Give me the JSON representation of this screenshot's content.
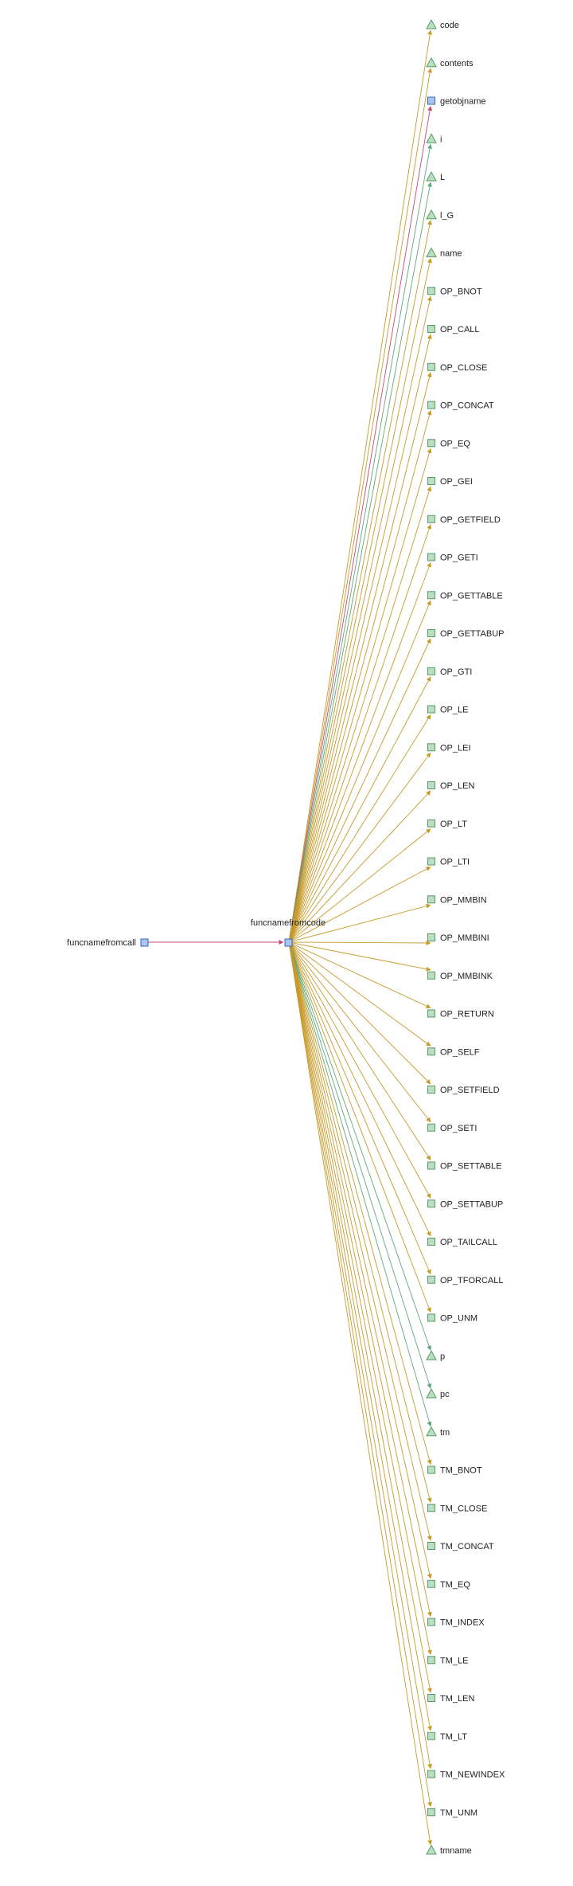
{
  "graph": {
    "source": {
      "label": "funcnamefromcall",
      "shape": "square"
    },
    "center": {
      "label": "funcnamefromcode",
      "shape": "square"
    },
    "source_edge_color": "#c8467a",
    "node_fill": "#b9dfc0",
    "node_stroke": "#5a9a68",
    "square_fill": "#aac4ec",
    "square_stroke": "#3a64b8",
    "targets": [
      {
        "label": "code",
        "shape": "triangle",
        "color": "#c79a2a"
      },
      {
        "label": "contents",
        "shape": "triangle",
        "color": "#c79a2a"
      },
      {
        "label": "getobjname",
        "shape": "square",
        "color": "#c8467a"
      },
      {
        "label": "i",
        "shape": "triangle",
        "color": "#5fa877"
      },
      {
        "label": "L",
        "shape": "triangle",
        "color": "#5fa877"
      },
      {
        "label": "l_G",
        "shape": "triangle",
        "color": "#c79a2a"
      },
      {
        "label": "name",
        "shape": "triangle",
        "color": "#c79a2a"
      },
      {
        "label": "OP_BNOT",
        "shape": "box",
        "color": "#c79a2a"
      },
      {
        "label": "OP_CALL",
        "shape": "box",
        "color": "#c79a2a"
      },
      {
        "label": "OP_CLOSE",
        "shape": "box",
        "color": "#c79a2a"
      },
      {
        "label": "OP_CONCAT",
        "shape": "box",
        "color": "#c79a2a"
      },
      {
        "label": "OP_EQ",
        "shape": "box",
        "color": "#c79a2a"
      },
      {
        "label": "OP_GEI",
        "shape": "box",
        "color": "#c79a2a"
      },
      {
        "label": "OP_GETFIELD",
        "shape": "box",
        "color": "#c79a2a"
      },
      {
        "label": "OP_GETI",
        "shape": "box",
        "color": "#c79a2a"
      },
      {
        "label": "OP_GETTABLE",
        "shape": "box",
        "color": "#c79a2a"
      },
      {
        "label": "OP_GETTABUP",
        "shape": "box",
        "color": "#c79a2a"
      },
      {
        "label": "OP_GTI",
        "shape": "box",
        "color": "#c79a2a"
      },
      {
        "label": "OP_LE",
        "shape": "box",
        "color": "#c79a2a"
      },
      {
        "label": "OP_LEI",
        "shape": "box",
        "color": "#c79a2a"
      },
      {
        "label": "OP_LEN",
        "shape": "box",
        "color": "#c79a2a"
      },
      {
        "label": "OP_LT",
        "shape": "box",
        "color": "#c79a2a"
      },
      {
        "label": "OP_LTI",
        "shape": "box",
        "color": "#c79a2a"
      },
      {
        "label": "OP_MMBIN",
        "shape": "box",
        "color": "#c79a2a"
      },
      {
        "label": "OP_MMBINI",
        "shape": "box",
        "color": "#c79a2a"
      },
      {
        "label": "OP_MMBINK",
        "shape": "box",
        "color": "#c79a2a"
      },
      {
        "label": "OP_RETURN",
        "shape": "box",
        "color": "#c79a2a"
      },
      {
        "label": "OP_SELF",
        "shape": "box",
        "color": "#c79a2a"
      },
      {
        "label": "OP_SETFIELD",
        "shape": "box",
        "color": "#c79a2a"
      },
      {
        "label": "OP_SETI",
        "shape": "box",
        "color": "#c79a2a"
      },
      {
        "label": "OP_SETTABLE",
        "shape": "box",
        "color": "#c79a2a"
      },
      {
        "label": "OP_SETTABUP",
        "shape": "box",
        "color": "#c79a2a"
      },
      {
        "label": "OP_TAILCALL",
        "shape": "box",
        "color": "#c79a2a"
      },
      {
        "label": "OP_TFORCALL",
        "shape": "box",
        "color": "#c79a2a"
      },
      {
        "label": "OP_UNM",
        "shape": "box",
        "color": "#c79a2a"
      },
      {
        "label": "p",
        "shape": "triangle",
        "color": "#5fa877"
      },
      {
        "label": "pc",
        "shape": "triangle",
        "color": "#5fa877"
      },
      {
        "label": "tm",
        "shape": "triangle",
        "color": "#5fa877"
      },
      {
        "label": "TM_BNOT",
        "shape": "box",
        "color": "#c79a2a"
      },
      {
        "label": "TM_CLOSE",
        "shape": "box",
        "color": "#c79a2a"
      },
      {
        "label": "TM_CONCAT",
        "shape": "box",
        "color": "#c79a2a"
      },
      {
        "label": "TM_EQ",
        "shape": "box",
        "color": "#c79a2a"
      },
      {
        "label": "TM_INDEX",
        "shape": "box",
        "color": "#c79a2a"
      },
      {
        "label": "TM_LE",
        "shape": "box",
        "color": "#c79a2a"
      },
      {
        "label": "TM_LEN",
        "shape": "box",
        "color": "#c79a2a"
      },
      {
        "label": "TM_LT",
        "shape": "box",
        "color": "#c79a2a"
      },
      {
        "label": "TM_NEWINDEX",
        "shape": "box",
        "color": "#c79a2a"
      },
      {
        "label": "TM_UNM",
        "shape": "box",
        "color": "#c79a2a"
      },
      {
        "label": "tmname",
        "shape": "triangle",
        "color": "#c79a2a"
      }
    ]
  }
}
